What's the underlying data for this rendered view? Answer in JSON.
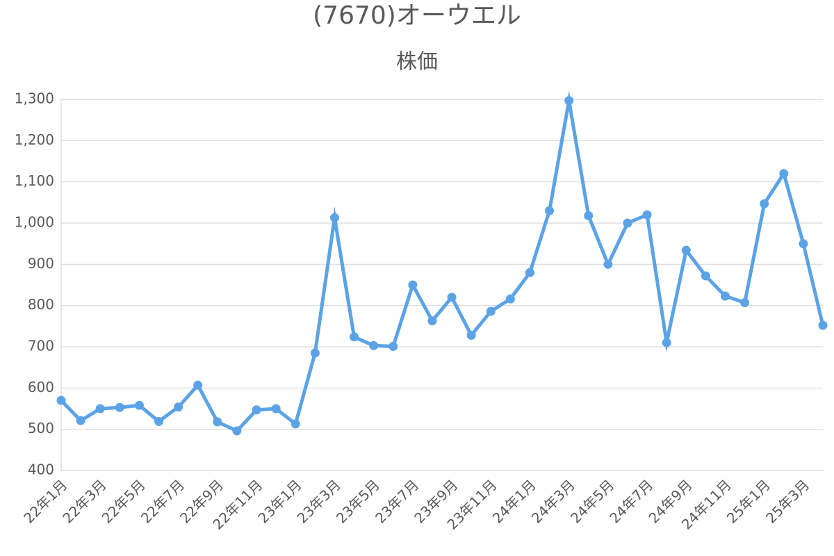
{
  "chart_data": {
    "type": "line",
    "title": "(7670)オーウエル",
    "subtitle": "株価",
    "categories": [
      "22年1月",
      null,
      "22年3月",
      null,
      "22年5月",
      null,
      "22年7月",
      null,
      "22年9月",
      null,
      "22年11月",
      null,
      "23年1月",
      null,
      "23年3月",
      null,
      "23年5月",
      null,
      "23年7月",
      null,
      "23年9月",
      null,
      "23年11月",
      null,
      "24年1月",
      null,
      "24年3月",
      null,
      "24年5月",
      null,
      "24年7月",
      null,
      "24年9月",
      null,
      "24年11月",
      null,
      "25年1月",
      null,
      "25年3月",
      null
    ],
    "series": [
      {
        "name": "株価",
        "color": "#5ba3e6",
        "values": [
          570,
          521,
          550,
          553,
          558,
          519,
          554,
          607,
          518,
          496,
          547,
          550,
          513,
          685,
          1013,
          724,
          703,
          701,
          850,
          763,
          820,
          728,
          786,
          816,
          880,
          1030,
          1297,
          1018,
          900,
          1000,
          1020,
          710,
          934,
          872,
          823,
          807,
          1047,
          1120,
          950,
          752
        ]
      }
    ],
    "ylim": [
      400,
      1300
    ],
    "yticks": [
      400,
      500,
      600,
      700,
      800,
      900,
      {
        "value": 1000,
        "label": "1,000"
      },
      {
        "value": 1100,
        "label": "1,100"
      },
      {
        "value": 1200,
        "label": "1,200"
      },
      {
        "value": 1300,
        "label": "1,300"
      }
    ],
    "grid": true
  }
}
